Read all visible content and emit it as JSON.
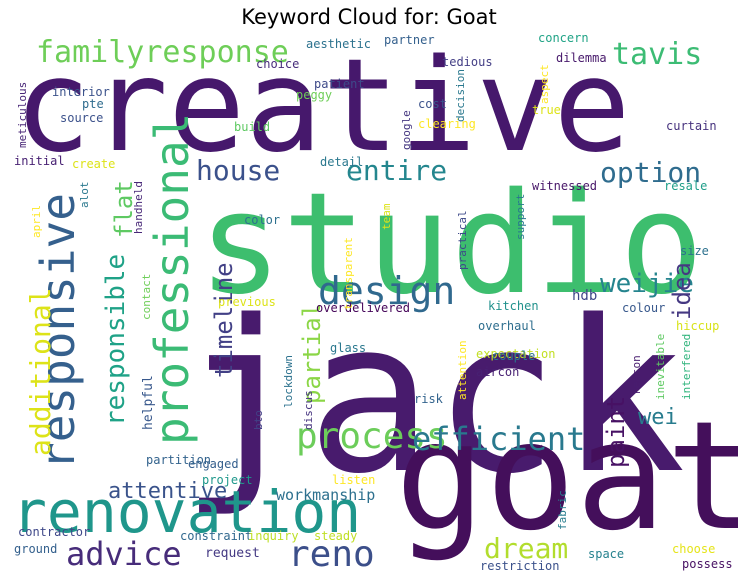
{
  "chart_data": {
    "type": "wordcloud",
    "title": "Keyword Cloud for: Goat",
    "colormap": [
      "#440154",
      "#482878",
      "#3e4989",
      "#31688e",
      "#26828e",
      "#1f9e89",
      "#35b779",
      "#6ece58",
      "#b5de2b",
      "#fde725"
    ],
    "words": [
      {
        "text": "creative",
        "weight": 100,
        "color": "#46186c",
        "vertical": false
      },
      {
        "text": "studio",
        "weight": 95,
        "color": "#3dbe6e",
        "vertical": false
      },
      {
        "text": "jack",
        "weight": 96,
        "color": "#481b6d",
        "vertical": false
      },
      {
        "text": "goat",
        "weight": 90,
        "color": "#440f5b",
        "vertical": false
      },
      {
        "text": "renovation",
        "weight": 60,
        "color": "#1f968b",
        "vertical": false
      },
      {
        "text": "professional",
        "weight": 48,
        "color": "#3bbb75",
        "vertical": true
      },
      {
        "text": "responsive",
        "weight": 47,
        "color": "#35608d",
        "vertical": true
      },
      {
        "text": "design",
        "weight": 40,
        "color": "#30698e",
        "vertical": false
      },
      {
        "text": "process",
        "weight": 38,
        "color": "#6ccd5a",
        "vertical": false
      },
      {
        "text": "efficient",
        "weight": 34,
        "color": "#29798e",
        "vertical": false
      },
      {
        "text": "familyresponse",
        "weight": 34,
        "color": "#6ece58",
        "vertical": false
      },
      {
        "text": "reno",
        "weight": 36,
        "color": "#3c4f8a",
        "vertical": false
      },
      {
        "text": "advice",
        "weight": 33,
        "color": "#472c7a",
        "vertical": false
      },
      {
        "text": "dream",
        "weight": 30,
        "color": "#b2dd2d",
        "vertical": false
      },
      {
        "text": "house",
        "weight": 30,
        "color": "#3b518b",
        "vertical": false
      },
      {
        "text": "entire",
        "weight": 30,
        "color": "#24868e",
        "vertical": false
      },
      {
        "text": "option",
        "weight": 30,
        "color": "#2f6c8e",
        "vertical": false
      },
      {
        "text": "tavis",
        "weight": 30,
        "color": "#3cbc74",
        "vertical": false
      },
      {
        "text": "additional",
        "weight": 30,
        "color": "#dde318",
        "vertical": true
      },
      {
        "text": "responsible",
        "weight": 28,
        "color": "#1fa287",
        "vertical": true
      },
      {
        "text": "flat",
        "weight": 26,
        "color": "#5ec962",
        "vertical": true
      },
      {
        "text": "timeline",
        "weight": 26,
        "color": "#424086",
        "vertical": true
      },
      {
        "text": "partial",
        "weight": 26,
        "color": "#8bd646",
        "vertical": true
      },
      {
        "text": "weijie",
        "weight": 26,
        "color": "#25848e",
        "vertical": false
      },
      {
        "text": "idea",
        "weight": 26,
        "color": "#453882",
        "vertical": true
      },
      {
        "text": "paint",
        "weight": 26,
        "color": "#471164",
        "vertical": true
      },
      {
        "text": "wei",
        "weight": 22,
        "color": "#287c8e",
        "vertical": false
      },
      {
        "text": "attentive",
        "weight": 22,
        "color": "#3a538b",
        "vertical": false
      },
      {
        "text": "workmanship",
        "weight": 16,
        "color": "#2d708e",
        "vertical": false
      },
      {
        "text": "helpful",
        "weight": 14,
        "color": "#38588c",
        "vertical": true
      },
      {
        "text": "hdb",
        "weight": 14,
        "color": "#3f4788",
        "vertical": false
      },
      {
        "text": "request",
        "weight": 14,
        "color": "#443983",
        "vertical": false
      },
      {
        "text": "engaged",
        "weight": 12,
        "color": "#355f8d",
        "vertical": false
      },
      {
        "text": "partition",
        "weight": 12,
        "color": "#33638d",
        "vertical": false
      },
      {
        "text": "project",
        "weight": 12,
        "color": "#1f988b",
        "vertical": false
      },
      {
        "text": "listen",
        "weight": 12,
        "color": "#fde725",
        "vertical": false
      },
      {
        "text": "constraint",
        "weight": 12,
        "color": "#31688e",
        "vertical": false
      },
      {
        "text": "inquiry",
        "weight": 12,
        "color": "#bddf26",
        "vertical": false
      },
      {
        "text": "steady",
        "weight": 12,
        "color": "#c0df25",
        "vertical": false
      },
      {
        "text": "contractor",
        "weight": 12,
        "color": "#3f4889",
        "vertical": false
      },
      {
        "text": "ground",
        "weight": 12,
        "color": "#34608d",
        "vertical": false
      },
      {
        "text": "fabric",
        "weight": 11,
        "color": "#287d8e",
        "vertical": true
      },
      {
        "text": "space",
        "weight": 12,
        "color": "#26828e",
        "vertical": false
      },
      {
        "text": "restriction",
        "weight": 12,
        "color": "#3b518b",
        "vertical": false
      },
      {
        "text": "choose",
        "weight": 12,
        "color": "#e5e419",
        "vertical": false
      },
      {
        "text": "possess",
        "weight": 12,
        "color": "#471063",
        "vertical": false
      },
      {
        "text": "overhaul",
        "weight": 12,
        "color": "#2e6e8e",
        "vertical": false
      },
      {
        "text": "kitchen",
        "weight": 12,
        "color": "#21918c",
        "vertical": false
      },
      {
        "text": "overdelivered",
        "weight": 12,
        "color": "#450559",
        "vertical": false
      },
      {
        "text": "previous",
        "weight": 12,
        "color": "#dde318",
        "vertical": false
      },
      {
        "text": "glass",
        "weight": 12,
        "color": "#2a788e",
        "vertical": false
      },
      {
        "text": "expectation",
        "weight": 12,
        "color": "#c2df23",
        "vertical": false
      },
      {
        "text": "aircon",
        "weight": 12,
        "color": "#482173",
        "vertical": false
      },
      {
        "text": "couple",
        "weight": 12,
        "color": "#2a768e",
        "vertical": false
      },
      {
        "text": "risk",
        "weight": 12,
        "color": "#33638d",
        "vertical": false
      },
      {
        "text": "reason",
        "weight": 11,
        "color": "#481d6f",
        "vertical": true
      },
      {
        "text": "inevitable",
        "weight": 11,
        "color": "#5ec962",
        "vertical": true
      },
      {
        "text": "interfered",
        "weight": 11,
        "color": "#2fb47c",
        "vertical": true
      },
      {
        "text": "attention",
        "weight": 11,
        "color": "#fde725",
        "vertical": true
      },
      {
        "text": "lockdown",
        "weight": 11,
        "color": "#2c728e",
        "vertical": true
      },
      {
        "text": "discus",
        "weight": 11,
        "color": "#46337f",
        "vertical": true
      },
      {
        "text": "bto",
        "weight": 11,
        "color": "#424086",
        "vertical": true
      },
      {
        "text": "contact",
        "weight": 11,
        "color": "#6ece58",
        "vertical": true
      },
      {
        "text": "transparent",
        "weight": 11,
        "color": "#fde725",
        "vertical": true
      },
      {
        "text": "team",
        "weight": 11,
        "color": "#dde318",
        "vertical": true
      },
      {
        "text": "practical",
        "weight": 11,
        "color": "#3e4989",
        "vertical": true
      },
      {
        "text": "support",
        "weight": 11,
        "color": "#29798e",
        "vertical": true
      },
      {
        "text": "witnessed",
        "weight": 12,
        "color": "#481769",
        "vertical": false
      },
      {
        "text": "resale",
        "weight": 12,
        "color": "#1f9e89",
        "vertical": false
      },
      {
        "text": "size",
        "weight": 12,
        "color": "#2c718e",
        "vertical": false
      },
      {
        "text": "colour",
        "weight": 12,
        "color": "#38588c",
        "vertical": false
      },
      {
        "text": "hiccup",
        "weight": 12,
        "color": "#d8e219",
        "vertical": false
      },
      {
        "text": "curtain",
        "weight": 12,
        "color": "#46327e",
        "vertical": false
      },
      {
        "text": "clearing",
        "weight": 12,
        "color": "#fde725",
        "vertical": false
      },
      {
        "text": "google",
        "weight": 11,
        "color": "#453781",
        "vertical": true
      },
      {
        "text": "cost",
        "weight": 12,
        "color": "#3b528b",
        "vertical": false
      },
      {
        "text": "detail",
        "weight": 12,
        "color": "#2a788e",
        "vertical": false
      },
      {
        "text": "color",
        "weight": 12,
        "color": "#2d708e",
        "vertical": false
      },
      {
        "text": "build",
        "weight": 12,
        "color": "#5ec962",
        "vertical": false
      },
      {
        "text": "peggy",
        "weight": 12,
        "color": "#6ece58",
        "vertical": false
      },
      {
        "text": "choice",
        "weight": 12,
        "color": "#472d7b",
        "vertical": false
      },
      {
        "text": "patient",
        "weight": 12,
        "color": "#3e4a89",
        "vertical": false
      },
      {
        "text": "aesthetic",
        "weight": 12,
        "color": "#2c728e",
        "vertical": false
      },
      {
        "text": "partner",
        "weight": 12,
        "color": "#34608d",
        "vertical": false
      },
      {
        "text": "tedious",
        "weight": 12,
        "color": "#433e85",
        "vertical": false
      },
      {
        "text": "decision",
        "weight": 11,
        "color": "#2a788e",
        "vertical": true
      },
      {
        "text": "concern",
        "weight": 12,
        "color": "#20a386",
        "vertical": false
      },
      {
        "text": "dilemma",
        "weight": 12,
        "color": "#481a6c",
        "vertical": false
      },
      {
        "text": "aspect",
        "weight": 11,
        "color": "#fde725",
        "vertical": true
      },
      {
        "text": "true",
        "weight": 12,
        "color": "#dde318",
        "vertical": false
      },
      {
        "text": "interior",
        "weight": 12,
        "color": "#3b528b",
        "vertical": false
      },
      {
        "text": "pte",
        "weight": 12,
        "color": "#2f6c8e",
        "vertical": false
      },
      {
        "text": "source",
        "weight": 12,
        "color": "#3b518b",
        "vertical": false
      },
      {
        "text": "meticulous",
        "weight": 11,
        "color": "#482677",
        "vertical": true
      },
      {
        "text": "initial",
        "weight": 12,
        "color": "#482173",
        "vertical": false
      },
      {
        "text": "create",
        "weight": 12,
        "color": "#dde318",
        "vertical": false
      },
      {
        "text": "alot",
        "weight": 11,
        "color": "#2a788e",
        "vertical": true
      },
      {
        "text": "handheld",
        "weight": 11,
        "color": "#482878",
        "vertical": true
      },
      {
        "text": "april",
        "weight": 11,
        "color": "#fde725",
        "vertical": true
      }
    ]
  }
}
